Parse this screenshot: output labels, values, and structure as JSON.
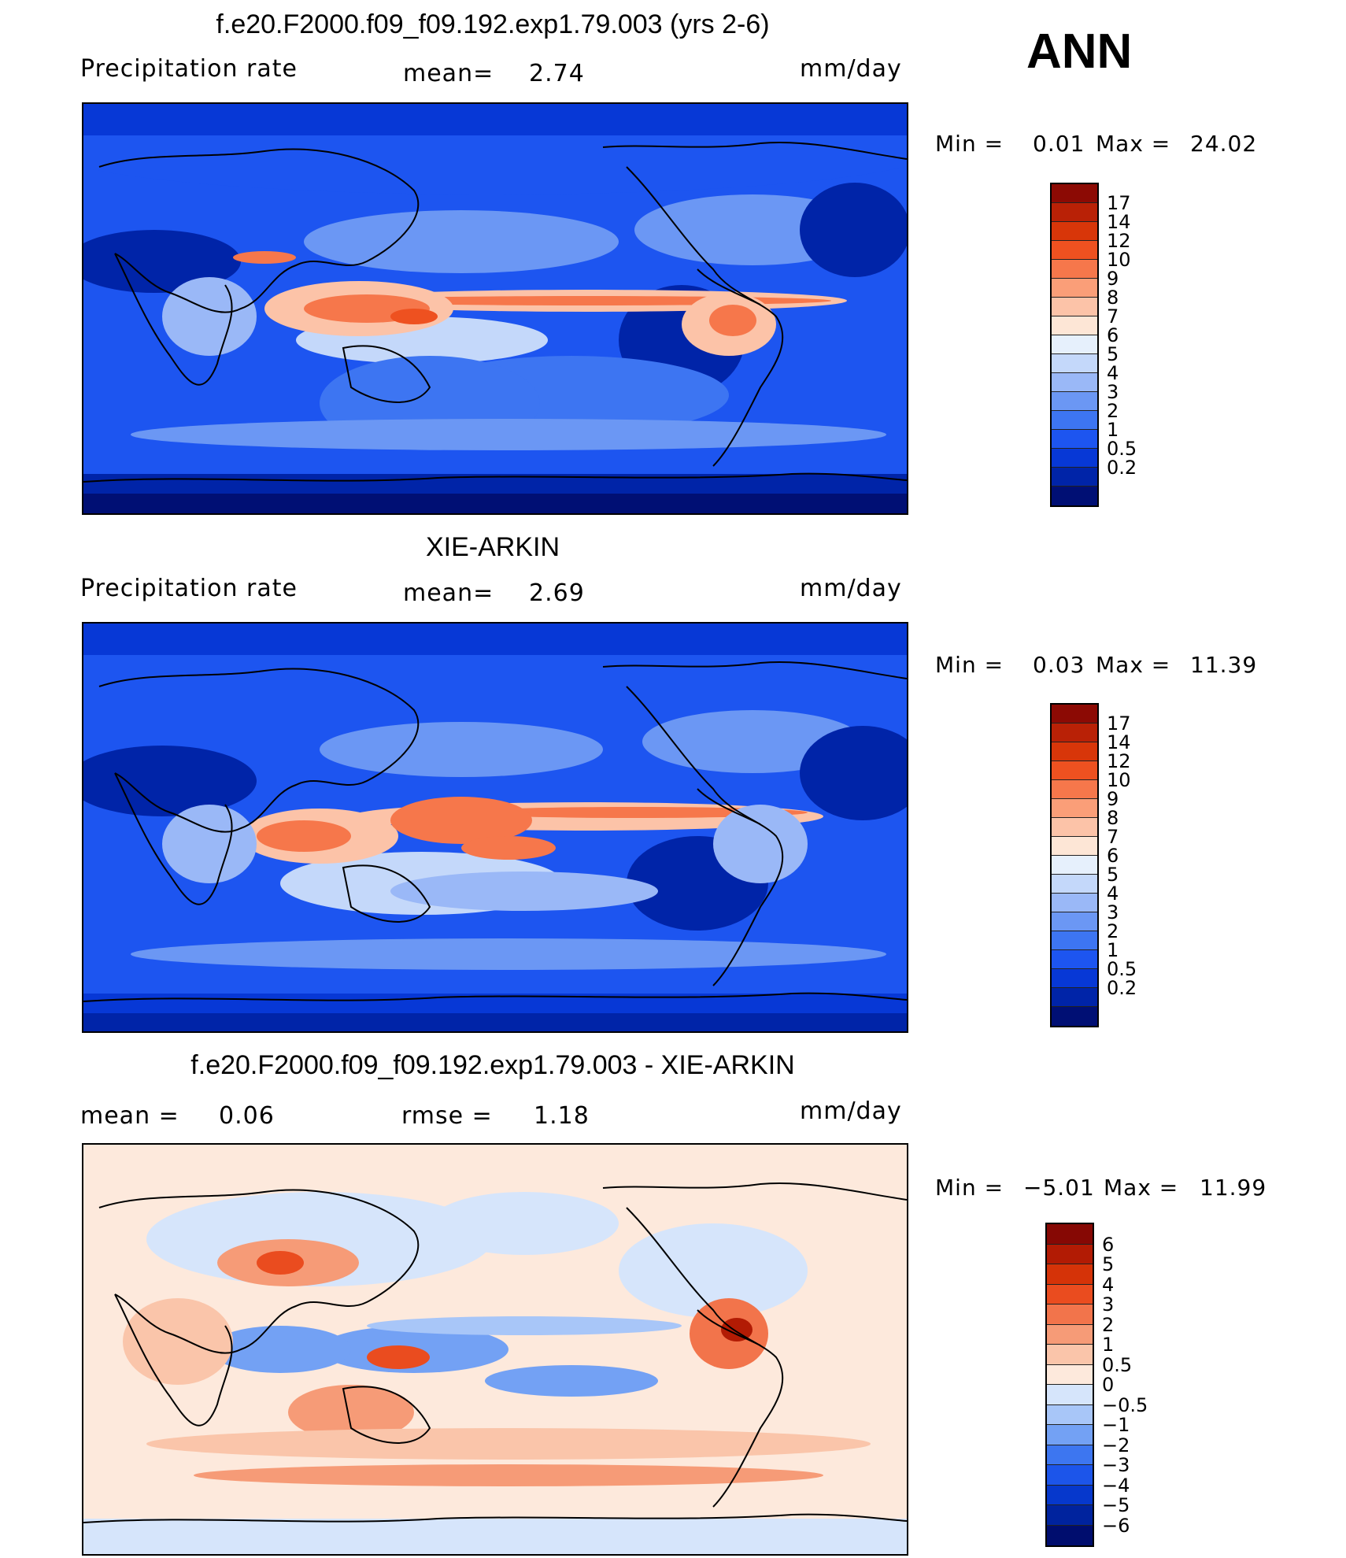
{
  "season": "ANN",
  "colors": {
    "prec": [
      "#000f74",
      "#0024a8",
      "#0738d6",
      "#1d55f0",
      "#3d75f2",
      "#6b97f4",
      "#9ab8f7",
      "#c4d8fa",
      "#e6f0fc",
      "#fde6d6",
      "#fcc3a8",
      "#fa9e78",
      "#f6774b",
      "#ee5120",
      "#d83609",
      "#b92106",
      "#8c0a04"
    ],
    "diff": [
      "#000d6e",
      "#00239e",
      "#0638cc",
      "#1c55ea",
      "#3d76f0",
      "#73a1f4",
      "#a8c6f8",
      "#d6e5fb",
      "#fde9dc",
      "#fac5aa",
      "#f69b77",
      "#f2744b",
      "#ea4c1f",
      "#d53308",
      "#b21b04",
      "#860804"
    ]
  },
  "panels": [
    {
      "title": "f.e20.F2000.f09_f09.192.exp1.79.003 (yrs 2-6)",
      "left_label": "Precipitation  rate",
      "mean_label": "mean=",
      "mean_value": "2.74",
      "units": "mm/day",
      "min_label": "Min  =",
      "min_value": "0.01",
      "max_label": "Max  =",
      "max_value": "24.02",
      "levels": [
        "17",
        "14",
        "12",
        "10",
        "9",
        "8",
        "7",
        "6",
        "5",
        "4",
        "3",
        "2",
        "1",
        "0.5",
        "0.2"
      ]
    },
    {
      "title": "XIE-ARKIN",
      "left_label": "Precipitation  rate",
      "mean_label": "mean=",
      "mean_value": "2.69",
      "units": "mm/day",
      "min_label": "Min  =",
      "min_value": "0.03",
      "max_label": "Max  =",
      "max_value": "11.39",
      "levels": [
        "17",
        "14",
        "12",
        "10",
        "9",
        "8",
        "7",
        "6",
        "5",
        "4",
        "3",
        "2",
        "1",
        "0.5",
        "0.2"
      ]
    },
    {
      "title": "f.e20.F2000.f09_f09.192.exp1.79.003 - XIE-ARKIN",
      "mean_label": "mean  =",
      "mean_value": "0.06",
      "rmse_label": "rmse  =",
      "rmse_value": "1.18",
      "units": "mm/day",
      "min_label": "Min  =",
      "min_value": "−5.01",
      "max_label": "Max  =",
      "max_value": "11.99",
      "levels": [
        "6",
        "5",
        "4",
        "3",
        "2",
        "1",
        "0.5",
        "0",
        "−0.5",
        "−1",
        "−2",
        "−3",
        "−4",
        "−5",
        "−6"
      ]
    }
  ]
}
